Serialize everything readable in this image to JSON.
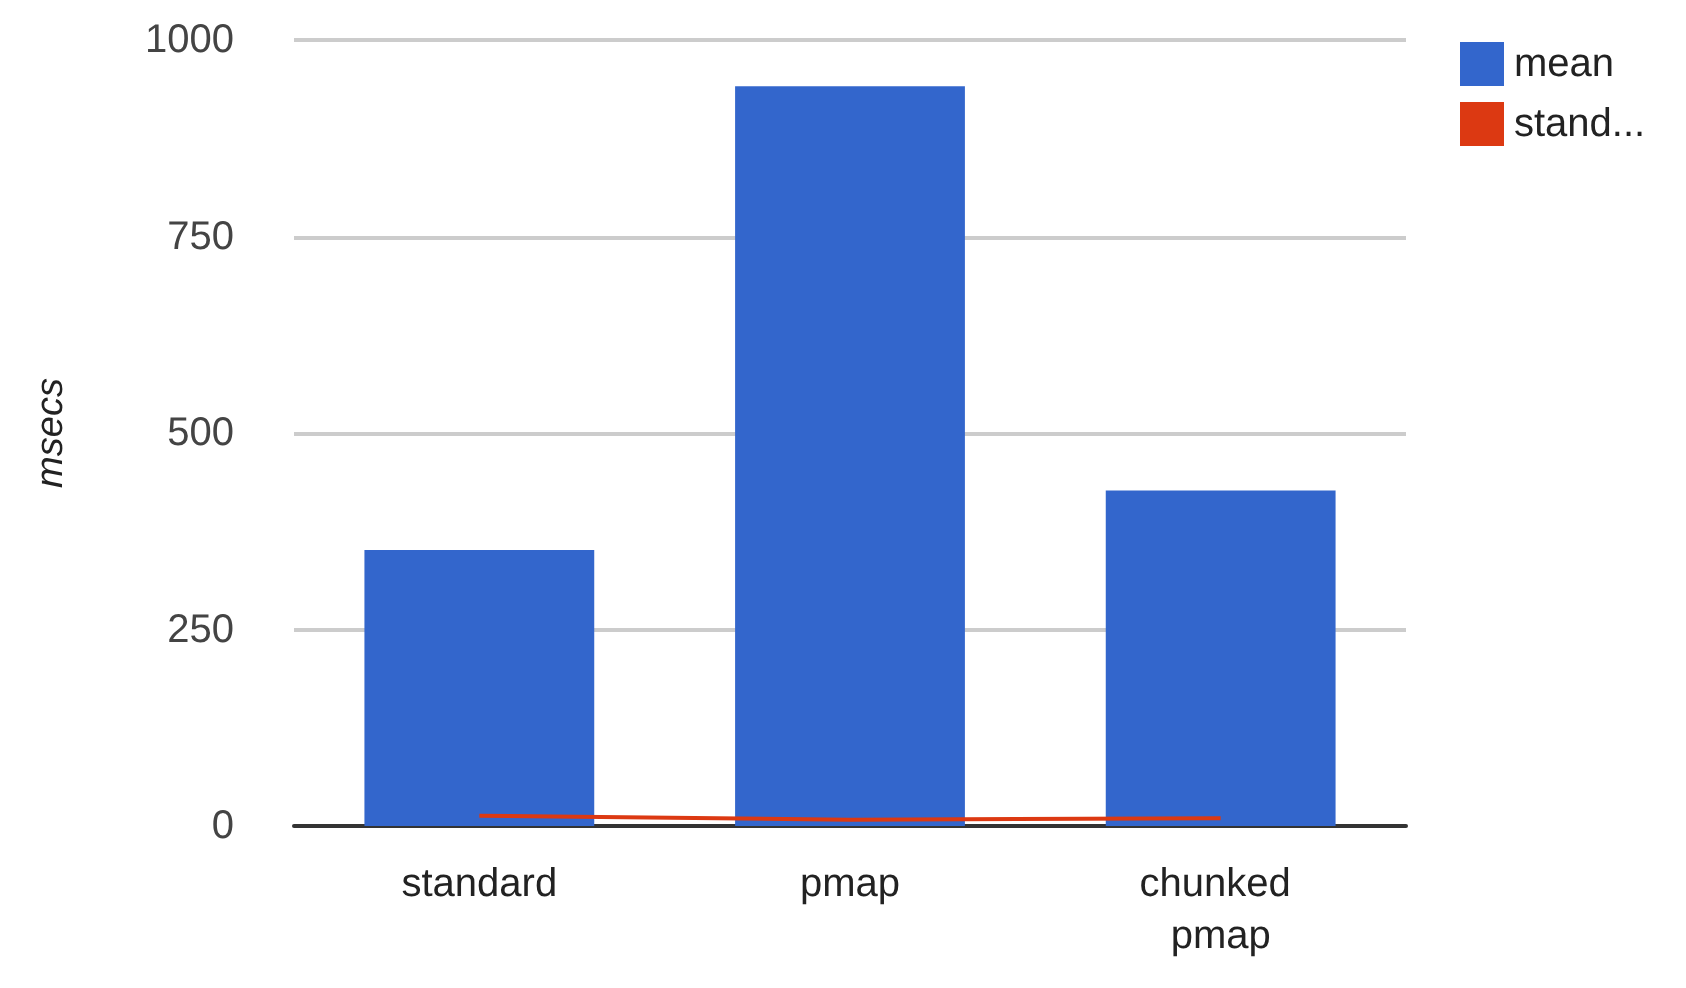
{
  "chart_data": {
    "type": "bar",
    "ylabel": "msecs",
    "categories": [
      "standard",
      "pmap",
      "chunked pmap"
    ],
    "series": [
      {
        "name": "mean",
        "color": "#3366cc",
        "values": [
          351,
          941,
          427
        ]
      },
      {
        "name": "stand...",
        "type": "line",
        "color": "#dc3912",
        "values": [
          13,
          8,
          10
        ]
      }
    ],
    "ylim": [
      0,
      1000
    ],
    "yticks": [
      0,
      250,
      500,
      750,
      1000
    ],
    "grid": "y",
    "legend": "top right",
    "marker": "none",
    "line_style": "solid"
  }
}
